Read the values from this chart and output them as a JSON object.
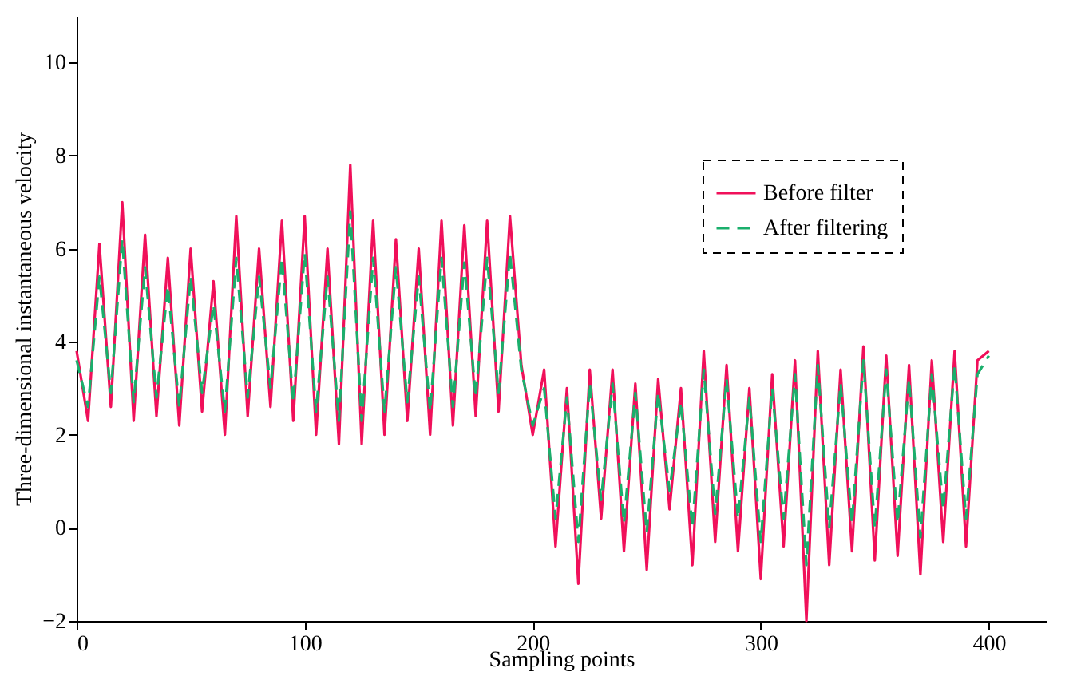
{
  "chart_data": {
    "type": "line",
    "xlabel": "Sampling points",
    "ylabel": "Three-dimensional instantaneous velocity",
    "xlim": [
      0,
      425
    ],
    "xticks": [
      0,
      100,
      200,
      300,
      400
    ],
    "ylim": [
      -2,
      11
    ],
    "yticks": [
      -2,
      0,
      2,
      4,
      6,
      8,
      10
    ],
    "grid": false,
    "legend": "top right",
    "marker": "none",
    "x": [
      0,
      5,
      10,
      15,
      20,
      25,
      30,
      35,
      40,
      45,
      50,
      55,
      60,
      65,
      70,
      75,
      80,
      85,
      90,
      95,
      100,
      105,
      110,
      115,
      120,
      125,
      130,
      135,
      140,
      145,
      150,
      155,
      160,
      165,
      170,
      175,
      180,
      185,
      190,
      195,
      200,
      205,
      210,
      215,
      220,
      225,
      230,
      235,
      240,
      245,
      250,
      255,
      260,
      265,
      270,
      275,
      280,
      285,
      290,
      295,
      300,
      305,
      310,
      315,
      320,
      325,
      330,
      335,
      340,
      345,
      350,
      355,
      360,
      365,
      370,
      375,
      380,
      385,
      390,
      395,
      400
    ],
    "series": [
      {
        "name": "Before filter",
        "color": "#f0105a",
        "line_style": "solid",
        "values": [
          3.8,
          2.3,
          6.1,
          2.6,
          7.0,
          2.3,
          6.3,
          2.4,
          5.8,
          2.2,
          6.0,
          2.5,
          5.3,
          2.0,
          6.7,
          2.4,
          6.0,
          2.6,
          6.6,
          2.3,
          6.7,
          2.0,
          6.0,
          1.8,
          7.8,
          1.8,
          6.6,
          2.0,
          6.2,
          2.3,
          6.0,
          2.0,
          6.6,
          2.2,
          6.5,
          2.4,
          6.6,
          2.5,
          6.7,
          3.5,
          2.0,
          3.4,
          -0.4,
          3.0,
          -1.2,
          3.4,
          0.2,
          3.4,
          -0.5,
          3.1,
          -0.9,
          3.2,
          0.4,
          3.0,
          -0.8,
          3.8,
          -0.3,
          3.5,
          -0.5,
          3.0,
          -1.1,
          3.3,
          -0.4,
          3.6,
          -2.0,
          3.8,
          -0.8,
          3.4,
          -0.5,
          3.9,
          -0.7,
          3.7,
          -0.6,
          3.5,
          -1.0,
          3.6,
          -0.3,
          3.8,
          -0.4,
          3.6,
          3.8
        ]
      },
      {
        "name": "After filtering",
        "color": "#1aaf6c",
        "line_style": "dashed",
        "values": [
          3.6,
          2.6,
          5.4,
          2.9,
          6.2,
          2.7,
          5.6,
          2.8,
          5.2,
          2.6,
          5.4,
          2.9,
          4.8,
          2.5,
          5.8,
          2.8,
          5.4,
          3.0,
          5.8,
          2.7,
          5.9,
          2.5,
          5.4,
          2.3,
          6.8,
          2.3,
          5.8,
          2.5,
          5.6,
          2.7,
          5.4,
          2.5,
          5.8,
          2.6,
          5.7,
          2.8,
          5.8,
          2.9,
          5.9,
          3.4,
          2.2,
          3.0,
          0.2,
          2.8,
          -0.3,
          3.1,
          0.6,
          3.1,
          0.1,
          2.9,
          -0.1,
          2.9,
          0.8,
          2.7,
          0.0,
          3.4,
          0.3,
          3.2,
          0.2,
          2.8,
          -0.3,
          3.0,
          0.2,
          3.3,
          -0.8,
          3.5,
          0.0,
          3.1,
          0.1,
          3.6,
          0.0,
          3.4,
          0.1,
          3.2,
          -0.2,
          3.3,
          0.4,
          3.5,
          0.2,
          3.3,
          3.7
        ]
      }
    ]
  }
}
